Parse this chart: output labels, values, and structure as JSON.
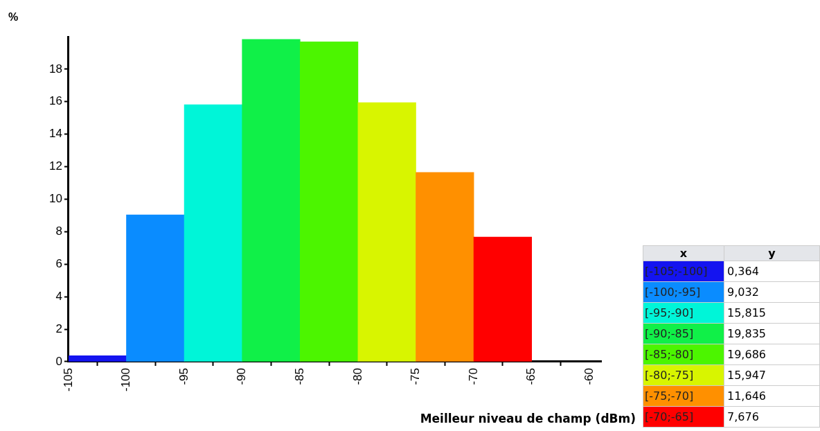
{
  "chart_data": [
    {
      "type": "histogram",
      "ylabel": "%",
      "xlabel": "Meilleur niveau de champ (dBm)",
      "bins": [
        -105,
        -100,
        -95,
        -90,
        -85,
        -80,
        -75,
        -70,
        -65
      ],
      "values": [
        0.364,
        9.032,
        15.815,
        19.835,
        19.686,
        15.947,
        11.646,
        7.676
      ],
      "colors": [
        "#1414f0",
        "#0a8cff",
        "#00f5d8",
        "#10f048",
        "#4cf500",
        "#d8f500",
        "#ff9000",
        "#ff0000"
      ],
      "xlim": [
        -105,
        -59
      ],
      "xticks": [
        -105,
        -100,
        -95,
        -90,
        -85,
        -80,
        -75,
        -70,
        -65,
        -60
      ],
      "ylim": [
        0,
        20
      ],
      "yticks": [
        0,
        2,
        4,
        6,
        8,
        10,
        12,
        14,
        16,
        18
      ],
      "grid": false,
      "legend": false
    },
    {
      "type": "other",
      "annotations": [
        "x",
        "y",
        "[-105;-100]",
        "0,364",
        "[-100;-95]",
        "9,032",
        "[-95;-90]",
        "15,815",
        "[-90;-85]",
        "19,835",
        "[-85;-80]",
        "19,686",
        "[-80;-75]",
        "15,947",
        "[-75;-70]",
        "11,646",
        "[-70;-65]",
        "7,676"
      ]
    }
  ]
}
